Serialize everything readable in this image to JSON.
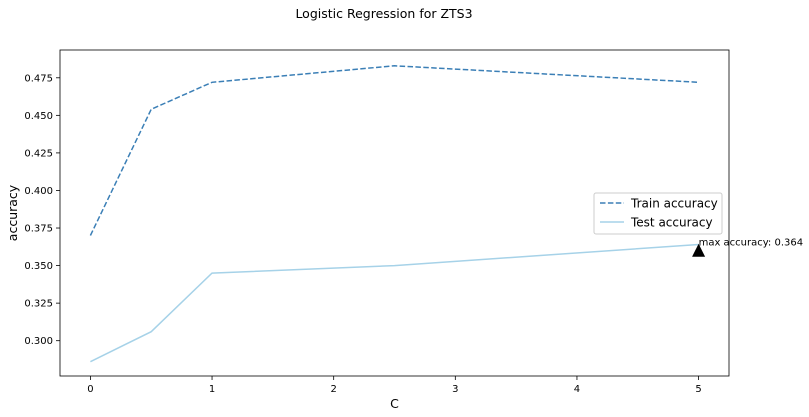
{
  "chart_data": {
    "type": "line",
    "title": "Logistic Regression for ZTS3",
    "xlabel": "C",
    "ylabel": "accuracy",
    "xlim": [
      -0.25,
      5.25
    ],
    "ylim": [
      0.2765,
      0.4935
    ],
    "x_ticks": [
      {
        "value": 0,
        "label": "0"
      },
      {
        "value": 1,
        "label": "1"
      },
      {
        "value": 2,
        "label": "2"
      },
      {
        "value": 3,
        "label": "3"
      },
      {
        "value": 4,
        "label": "4"
      },
      {
        "value": 5,
        "label": "5"
      }
    ],
    "y_ticks": [
      {
        "value": 0.3,
        "label": "0.300"
      },
      {
        "value": 0.325,
        "label": "0.325"
      },
      {
        "value": 0.35,
        "label": "0.350"
      },
      {
        "value": 0.375,
        "label": "0.375"
      },
      {
        "value": 0.4,
        "label": "0.400"
      },
      {
        "value": 0.425,
        "label": "0.425"
      },
      {
        "value": 0.45,
        "label": "0.450"
      },
      {
        "value": 0.475,
        "label": "0.475"
      }
    ],
    "grid": false,
    "legend_position": "right",
    "series": [
      {
        "name": "Train accuracy",
        "color": "#3b7fb6",
        "dashed": true,
        "x": [
          0,
          0.5,
          1,
          2.5,
          5
        ],
        "y": [
          0.37,
          0.454,
          0.472,
          0.483,
          0.472
        ]
      },
      {
        "name": "Test accuracy",
        "color": "#a6d2e8",
        "dashed": false,
        "x": [
          0,
          0.5,
          1,
          2.5,
          5
        ],
        "y": [
          0.286,
          0.306,
          0.345,
          0.35,
          0.364
        ]
      }
    ],
    "annotations": [
      {
        "text": "max accuracy: 0.364",
        "x": 5,
        "y": 0.3599,
        "marker": "triangle-up",
        "marker_color": "#000000"
      }
    ]
  }
}
